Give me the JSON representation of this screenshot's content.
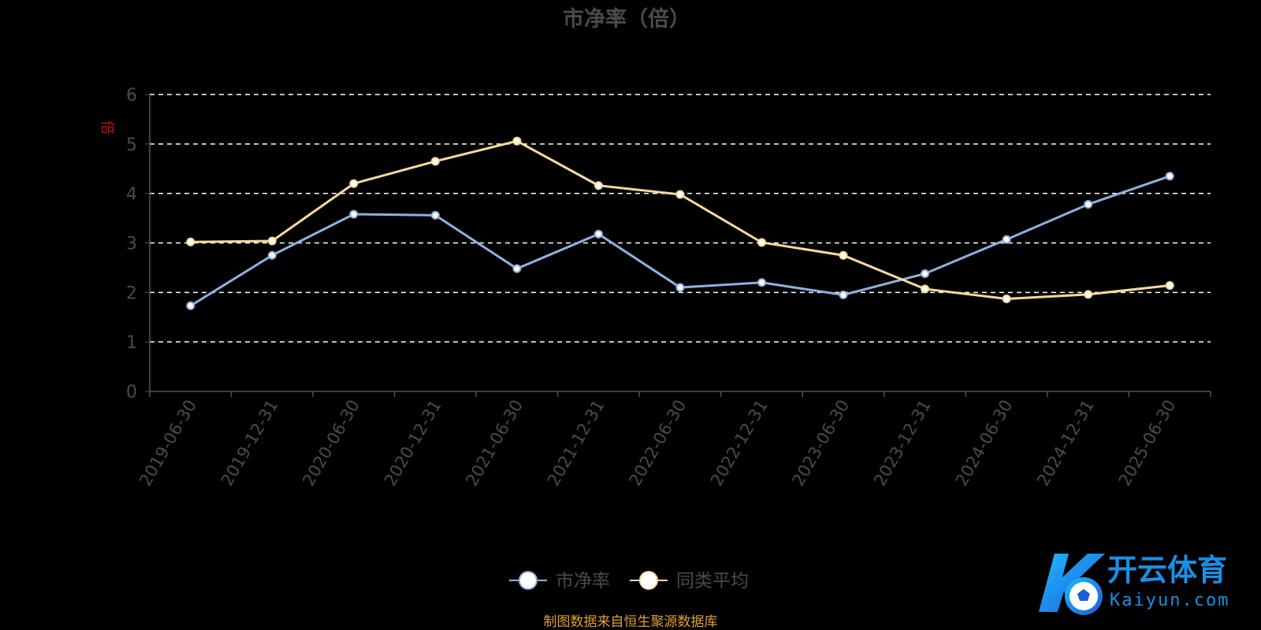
{
  "chart_data": {
    "type": "line",
    "title": "市净率（倍）",
    "ylabel": "倍",
    "xlabel": "",
    "ylim": [
      0,
      6
    ],
    "yticks": [
      0,
      1,
      2,
      3,
      4,
      5,
      6
    ],
    "grid": true,
    "legend_position": "bottom-center",
    "categories": [
      "2019-06-30",
      "2019-12-31",
      "2020-06-30",
      "2020-12-31",
      "2021-06-30",
      "2021-12-31",
      "2022-06-30",
      "2022-12-31",
      "2023-06-30",
      "2023-12-31",
      "2024-06-30",
      "2024-12-31",
      "2025-06-30"
    ],
    "series": [
      {
        "name": "市净率",
        "color": "#8fb0e0",
        "values": [
          1.73,
          2.75,
          3.58,
          3.56,
          2.48,
          3.18,
          2.1,
          2.2,
          1.95,
          2.38,
          3.07,
          3.78,
          4.35
        ]
      },
      {
        "name": "同类平均",
        "color": "#f9d99a",
        "values": [
          3.02,
          3.04,
          4.2,
          4.65,
          5.06,
          4.16,
          3.98,
          3.01,
          2.75,
          2.07,
          1.87,
          1.96,
          2.14
        ]
      }
    ]
  },
  "footer": {
    "source": "制图数据来自恒生聚源数据库"
  },
  "logo": {
    "name": "开云体育",
    "url_text": "Kaiyun.com"
  }
}
